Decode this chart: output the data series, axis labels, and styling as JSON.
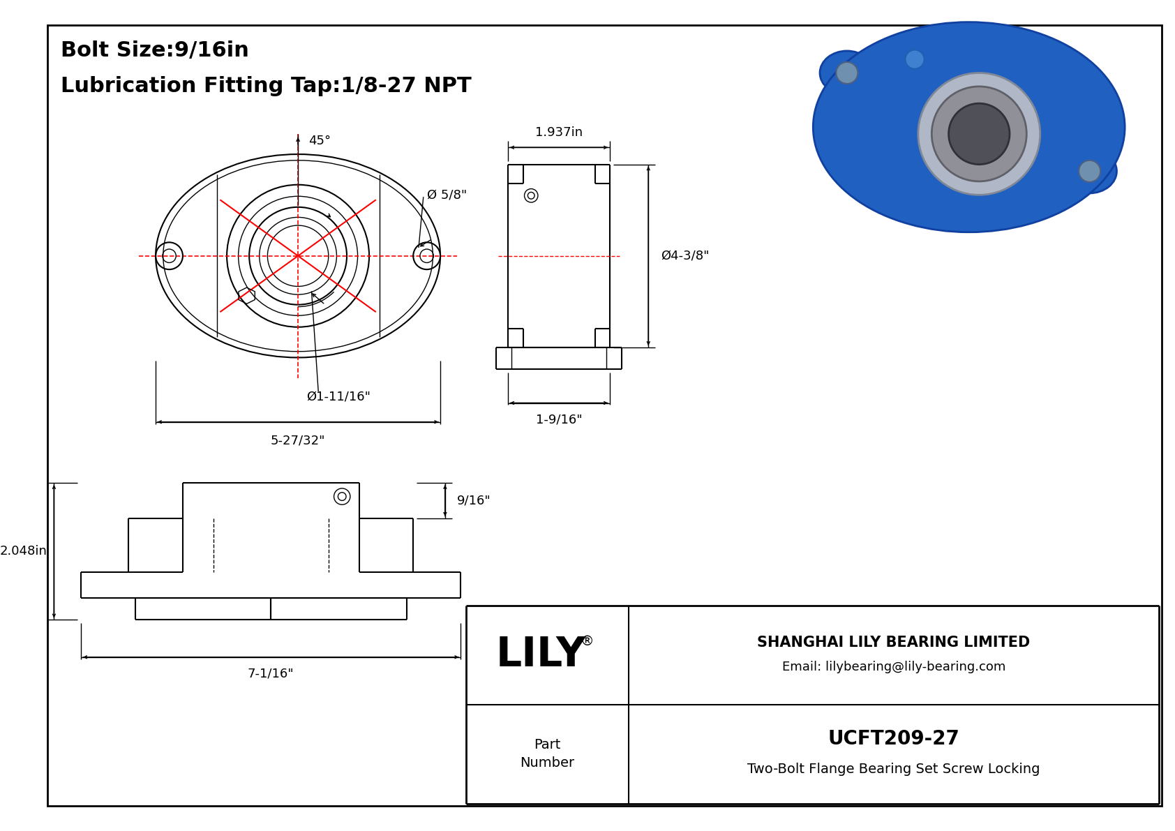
{
  "bg_color": "#ffffff",
  "red_color": "#ff0000",
  "title_line1": "Bolt Size:9/16in",
  "title_line2": "Lubrication Fitting Tap:1/8-27 NPT",
  "dim_45": "45°",
  "dim_bore": "Ø1-11/16\"",
  "dim_width": "5-27/32\"",
  "dim_od": "Ø 5/8\"",
  "dim_side_width": "1.937in",
  "dim_side_od": "Ø4-3/8\"",
  "dim_side_height": "1-9/16\"",
  "dim_front_height": "2.048in",
  "dim_front_width": "7-1/16\"",
  "dim_front_bolt": "9/16\"",
  "part_number": "UCFT209-27",
  "part_desc": "Two-Bolt Flange Bearing Set Screw Locking",
  "company": "SHANGHAI LILY BEARING LIMITED",
  "email": "Email: lilybearing@lily-bearing.com"
}
